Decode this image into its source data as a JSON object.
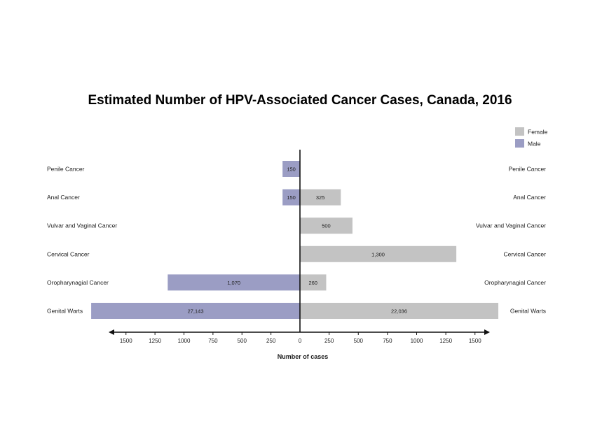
{
  "chart_data": {
    "type": "bar",
    "orientation": "horizontal",
    "layout": "population-pyramid",
    "title": "Estimated Number of HPV-Associated Cancer Cases, Canada, 2016",
    "xlabel": "Number of cases",
    "ylabel": "",
    "categories": [
      "Penile Cancer",
      "Anal Cancer",
      "Vulvar and Vaginal Cancer",
      "Cervical Cancer",
      "Oropharynagial Cancer",
      "Genital Warts"
    ],
    "series": [
      {
        "name": "Male",
        "side": "left",
        "color": "#9b9dc4",
        "values": [
          150,
          150,
          null,
          null,
          1070,
          27143
        ],
        "data_labels": [
          "150",
          "150",
          "",
          "",
          "1,070",
          "27,143"
        ],
        "drawn_length": [
          150,
          150,
          null,
          null,
          1140,
          1800
        ]
      },
      {
        "name": "Female",
        "side": "right",
        "color": "#c3c3c3",
        "values": [
          null,
          325,
          500,
          1300,
          260,
          22036
        ],
        "data_labels": [
          "",
          "325",
          "500",
          "1,300",
          "260",
          "22,036"
        ],
        "drawn_length": [
          null,
          350,
          450,
          1340,
          225,
          1700
        ]
      }
    ],
    "ticks_left": [
      "1500",
      "1250",
      "1000",
      "750",
      "500",
      "250"
    ],
    "ticks_right": [
      "0",
      "250",
      "500",
      "750",
      "1000",
      "1250",
      "1500"
    ],
    "tick_values_left": [
      1500,
      1250,
      1000,
      750,
      500,
      250
    ],
    "tick_values_right": [
      0,
      250,
      500,
      750,
      1000,
      1250,
      1500
    ],
    "xlim": [
      -1800,
      1700
    ],
    "grid": false,
    "legend_position": "top-right",
    "legend_order": [
      "Female",
      "Male"
    ]
  }
}
